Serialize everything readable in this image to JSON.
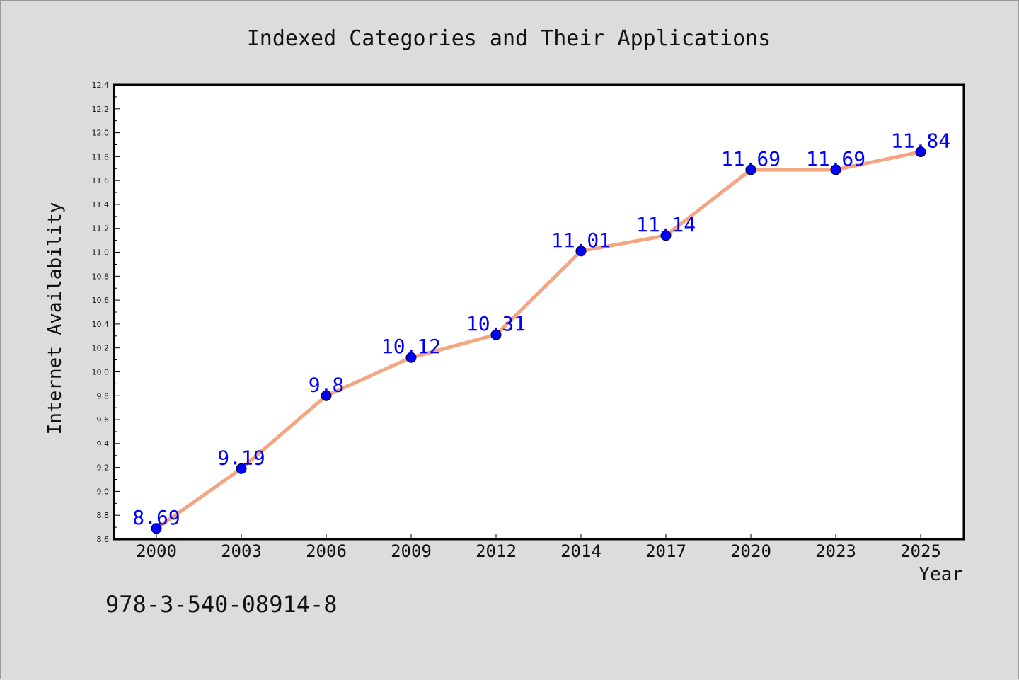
{
  "chart_data": {
    "type": "line",
    "title": "Indexed Categories and Their Applications",
    "xlabel": "Year",
    "ylabel": "Internet Availability",
    "categories": [
      "2000",
      "2003",
      "2006",
      "2009",
      "2012",
      "2014",
      "2017",
      "2020",
      "2023",
      "2025"
    ],
    "series": [
      {
        "values": [
          8.69,
          9.19,
          9.8,
          10.12,
          10.31,
          11.01,
          11.14,
          11.69,
          11.69,
          11.84
        ],
        "data_labels": [
          "8.69",
          "9.19",
          "9.8",
          "10.12",
          "10.31",
          "11.01",
          "11.14",
          "11.69",
          "11.69",
          "11.84"
        ],
        "line_color": "#f4a582",
        "marker_color": "#0000ff"
      }
    ],
    "ylim": [
      8.6,
      12.4
    ],
    "y_major_ticks": [
      "8.6",
      "8.8",
      "9.0",
      "9.2",
      "9.4",
      "9.6",
      "9.8",
      "10.0",
      "10.2",
      "10.4",
      "10.6",
      "10.8",
      "11.0",
      "11.2",
      "11.4",
      "11.6",
      "11.8",
      "12.0",
      "12.2",
      "12.4"
    ],
    "y_minor_step": 0.1,
    "grid": false,
    "legend": "none",
    "label_color": "#0000ff",
    "background_color": "#dcdcdc",
    "plot_background_color": "#ffffff"
  },
  "footer": {
    "isbn": "978-3-540-08914-8"
  }
}
